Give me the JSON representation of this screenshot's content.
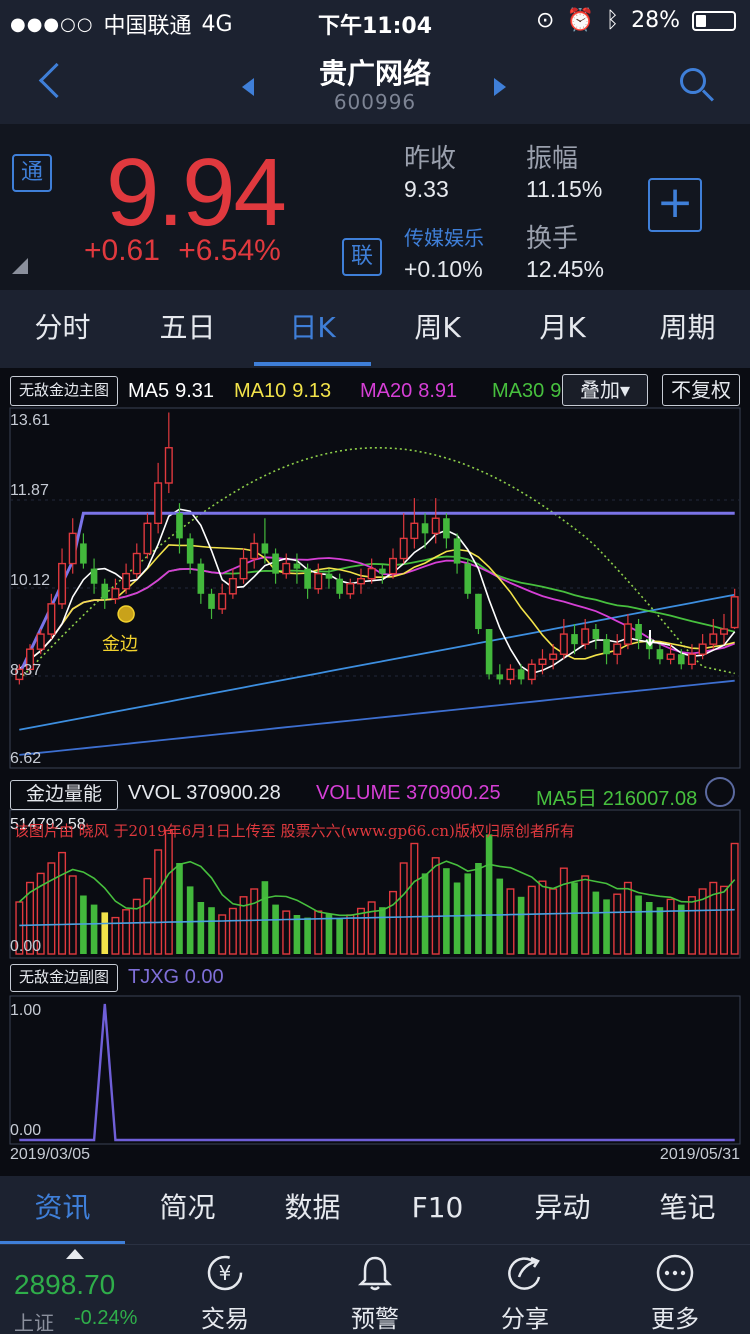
{
  "status_bar": {
    "carrier": "中国联通",
    "network": "4G",
    "time": "下午11:04",
    "battery": "28%",
    "battery_level": 0.28
  },
  "header": {
    "stock_name": "贵广网络",
    "stock_code": "600996"
  },
  "quote": {
    "badge_left": "通",
    "badge_mid": "联",
    "price": "9.94",
    "change": "+0.61",
    "change_pct": "+6.54%",
    "prev_close_label": "昨收",
    "prev_close_value": "9.33",
    "amplitude_label": "振幅",
    "amplitude_value": "11.15%",
    "sector_link": "传媒娱乐",
    "sector_value": "+0.10%",
    "turnover_label": "换手",
    "turnover_value": "12.45%",
    "add_label": "+"
  },
  "period_tabs": [
    "分时",
    "五日",
    "日K",
    "周K",
    "月K",
    "周期"
  ],
  "active_period": 2,
  "chart": {
    "main_indicator": "无敌金边主图",
    "ma": [
      {
        "name": "MA5",
        "value": "9.31",
        "color": "#ffffff"
      },
      {
        "name": "MA10",
        "value": "9.13",
        "color": "#f2e34a"
      },
      {
        "name": "MA20",
        "value": "8.91",
        "color": "#d63fd6"
      },
      {
        "name": "MA30",
        "value": "9.",
        "color": "#47c03e"
      }
    ],
    "overlay_label": "叠加▾",
    "fq_label": "不复权",
    "price_axis": [
      "13.61",
      "11.87",
      "10.12",
      "8.37",
      "6.62"
    ],
    "signal_label": "金边",
    "vol_indicator": "金边量能",
    "vvol_label": "VVOL",
    "vvol_value": "370900.28",
    "volume_label": "VOLUME",
    "volume_value": "370900.25",
    "ma5_vol_label": "MA5日",
    "ma5_vol_value": "216007.08",
    "vol_axis_top": "514792.58",
    "vol_axis_bottom": "0.00",
    "watermark": "该图片由 晓风 于2019年6月1日上传至 股票六六(www.gp66.cn)版权归原创者所有",
    "sub_indicator": "无敌金边副图",
    "tjxg_label": "TJXG",
    "tjxg_value": "0.00",
    "sub_axis_top": "1.00",
    "sub_axis_bottom": "0.00",
    "date_start": "2019/03/05",
    "date_end": "2019/05/31"
  },
  "chart_data": {
    "type": "candlestick",
    "ylim": [
      6.62,
      13.61
    ],
    "candles": [
      [
        8.3,
        8.5,
        8.2,
        8.6
      ],
      [
        8.5,
        8.9,
        8.4,
        9.0
      ],
      [
        8.9,
        9.2,
        8.8,
        9.3
      ],
      [
        9.2,
        9.8,
        9.1,
        10.0
      ],
      [
        9.8,
        10.6,
        9.7,
        10.9
      ],
      [
        10.6,
        11.2,
        10.4,
        11.5
      ],
      [
        11.0,
        10.6,
        10.5,
        11.2
      ],
      [
        10.5,
        10.2,
        10.0,
        10.7
      ],
      [
        10.2,
        9.9,
        9.7,
        10.3
      ],
      [
        9.9,
        10.1,
        9.8,
        10.3
      ],
      [
        10.1,
        10.4,
        10.0,
        10.6
      ],
      [
        10.4,
        10.8,
        10.3,
        11.0
      ],
      [
        10.8,
        11.4,
        10.7,
        11.6
      ],
      [
        11.4,
        12.2,
        11.2,
        12.6
      ],
      [
        12.2,
        12.9,
        12.0,
        13.6
      ],
      [
        11.6,
        11.1,
        10.8,
        11.8
      ],
      [
        11.1,
        10.6,
        10.4,
        11.2
      ],
      [
        10.6,
        10.0,
        9.8,
        10.7
      ],
      [
        10.0,
        9.7,
        9.5,
        10.1
      ],
      [
        9.7,
        10.0,
        9.6,
        10.2
      ],
      [
        10.0,
        10.3,
        9.9,
        10.5
      ],
      [
        10.3,
        10.7,
        10.2,
        10.9
      ],
      [
        10.7,
        11.0,
        10.5,
        11.2
      ],
      [
        11.0,
        10.8,
        10.6,
        11.5
      ],
      [
        10.8,
        10.4,
        10.2,
        10.9
      ],
      [
        10.4,
        10.6,
        10.3,
        10.8
      ],
      [
        10.6,
        10.5,
        10.2,
        10.8
      ],
      [
        10.5,
        10.1,
        9.9,
        10.6
      ],
      [
        10.1,
        10.4,
        10.0,
        10.6
      ],
      [
        10.4,
        10.3,
        10.1,
        10.5
      ],
      [
        10.3,
        10.0,
        9.9,
        10.4
      ],
      [
        10.0,
        10.2,
        9.9,
        10.3
      ],
      [
        10.2,
        10.3,
        10.0,
        10.5
      ],
      [
        10.3,
        10.5,
        10.2,
        10.7
      ],
      [
        10.5,
        10.4,
        10.2,
        10.6
      ],
      [
        10.4,
        10.7,
        10.3,
        10.9
      ],
      [
        10.7,
        11.1,
        10.6,
        11.6
      ],
      [
        11.1,
        11.4,
        10.9,
        11.9
      ],
      [
        11.4,
        11.2,
        10.9,
        11.6
      ],
      [
        11.2,
        11.5,
        11.0,
        11.9
      ],
      [
        11.5,
        11.1,
        10.9,
        11.6
      ],
      [
        11.1,
        10.6,
        10.4,
        11.2
      ],
      [
        10.6,
        10.0,
        9.9,
        10.7
      ],
      [
        10.0,
        9.3,
        9.2,
        10.0
      ],
      [
        9.3,
        8.4,
        8.3,
        9.3
      ],
      [
        8.4,
        8.3,
        8.2,
        8.6
      ],
      [
        8.3,
        8.5,
        8.2,
        8.6
      ],
      [
        8.5,
        8.3,
        8.2,
        8.6
      ],
      [
        8.3,
        8.6,
        8.2,
        8.7
      ],
      [
        8.6,
        8.7,
        8.4,
        8.9
      ],
      [
        8.7,
        8.8,
        8.5,
        9.0
      ],
      [
        8.8,
        9.2,
        8.7,
        9.5
      ],
      [
        9.2,
        9.0,
        8.8,
        9.4
      ],
      [
        9.0,
        9.3,
        8.9,
        9.5
      ],
      [
        9.3,
        9.1,
        8.9,
        9.4
      ],
      [
        9.1,
        8.8,
        8.6,
        9.2
      ],
      [
        8.8,
        9.0,
        8.6,
        9.2
      ],
      [
        9.0,
        9.4,
        8.9,
        9.6
      ],
      [
        9.4,
        9.1,
        8.9,
        9.5
      ],
      [
        9.1,
        8.9,
        8.7,
        9.2
      ],
      [
        8.9,
        8.7,
        8.6,
        9.0
      ],
      [
        8.7,
        8.8,
        8.6,
        9.0
      ],
      [
        8.8,
        8.6,
        8.5,
        8.9
      ],
      [
        8.6,
        8.8,
        8.5,
        9.0
      ],
      [
        8.8,
        9.0,
        8.7,
        9.2
      ],
      [
        9.0,
        9.2,
        8.9,
        9.5
      ],
      [
        9.2,
        9.3,
        9.0,
        9.6
      ],
      [
        9.33,
        9.94,
        9.3,
        10.1
      ]
    ],
    "volume_ylim": [
      0,
      514792.58
    ],
    "volumes": [
      0.4,
      0.55,
      0.62,
      0.7,
      0.78,
      0.6,
      0.45,
      0.38,
      0.32,
      0.28,
      0.34,
      0.42,
      0.58,
      0.8,
      0.95,
      0.7,
      0.52,
      0.4,
      0.36,
      0.3,
      0.35,
      0.44,
      0.5,
      0.56,
      0.38,
      0.33,
      0.3,
      0.28,
      0.33,
      0.31,
      0.27,
      0.3,
      0.35,
      0.4,
      0.36,
      0.48,
      0.7,
      0.85,
      0.62,
      0.74,
      0.66,
      0.55,
      0.62,
      0.7,
      0.92,
      0.58,
      0.5,
      0.44,
      0.52,
      0.56,
      0.5,
      0.66,
      0.55,
      0.6,
      0.48,
      0.42,
      0.46,
      0.55,
      0.45,
      0.4,
      0.36,
      0.42,
      0.38,
      0.44,
      0.5,
      0.55,
      0.52,
      0.85
    ],
    "tjxg_signal_index": 8,
    "xlabels": [
      "2019/03/05",
      "2019/05/31"
    ]
  },
  "info_tabs": [
    "资讯",
    "简况",
    "数据",
    "F10",
    "异动",
    "笔记"
  ],
  "active_info_tab": 0,
  "bottom_nav": {
    "index_value": "2898.70",
    "index_name": "上证",
    "index_change": "-0.24%",
    "items": [
      {
        "label": "交易",
        "icon": "trade-yen-icon"
      },
      {
        "label": "预警",
        "icon": "bell-icon"
      },
      {
        "label": "分享",
        "icon": "share-icon"
      },
      {
        "label": "更多",
        "icon": "more-icon"
      }
    ]
  }
}
